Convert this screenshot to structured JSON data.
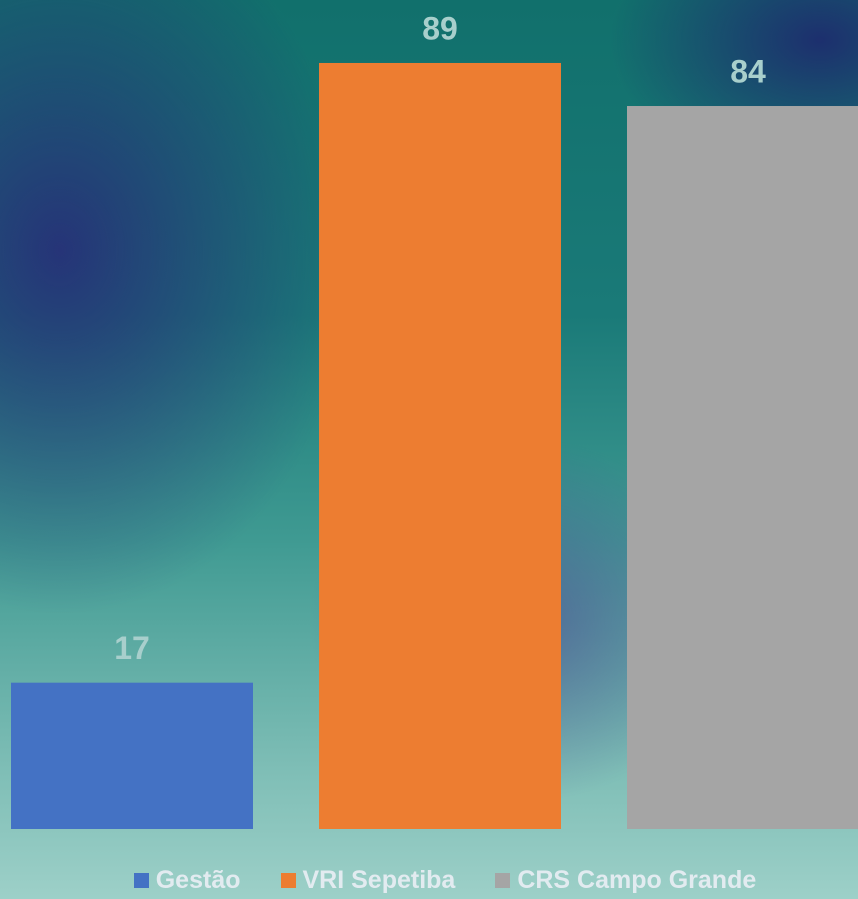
{
  "chart_data": {
    "type": "bar",
    "categories": [
      null
    ],
    "series": [
      {
        "name": "Gestão",
        "color": "#4472c4",
        "values": [
          17
        ]
      },
      {
        "name": "VRI Sepetiba",
        "color": "#ed7d31",
        "values": [
          89
        ]
      },
      {
        "name": "CRS Campo Grande",
        "color": "#a5a5a5",
        "values": [
          84
        ]
      }
    ],
    "ylim": [
      0,
      96
    ],
    "legend": "bottom"
  }
}
